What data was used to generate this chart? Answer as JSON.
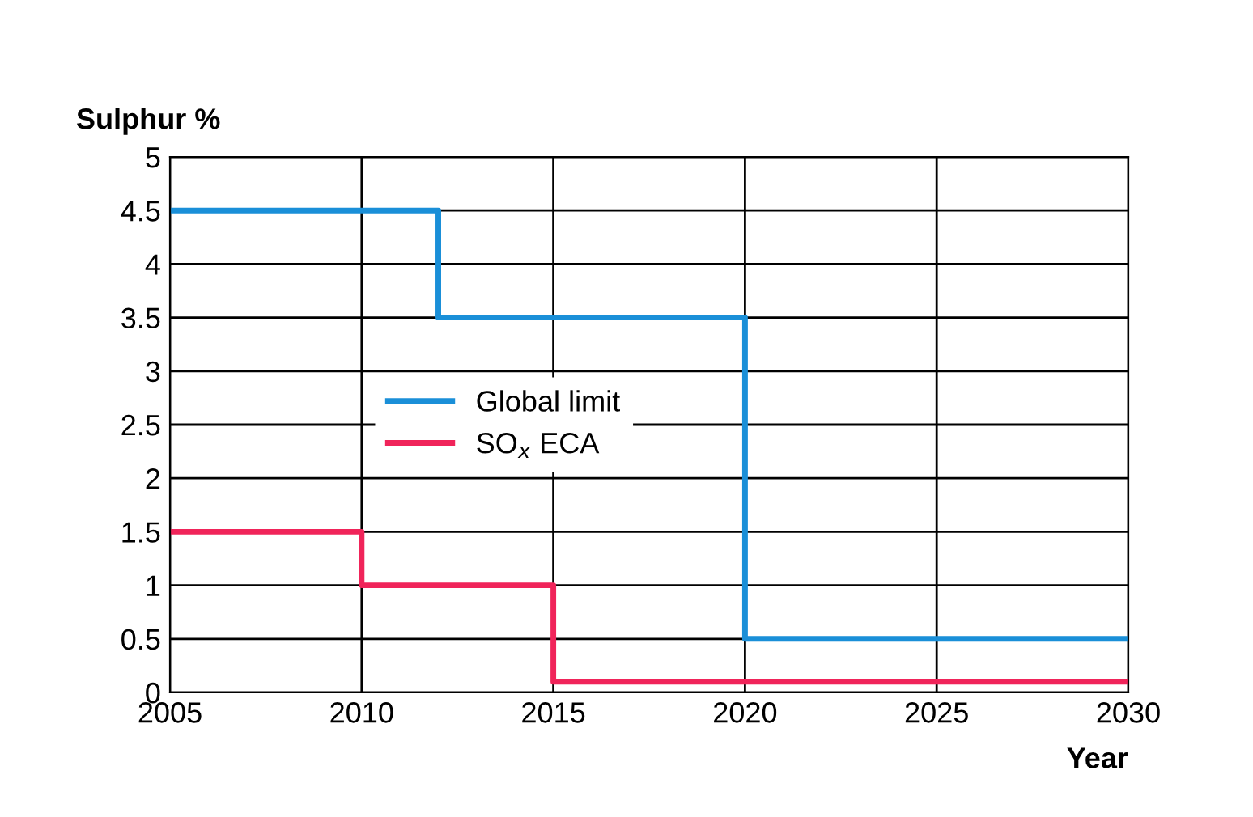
{
  "chart_data": {
    "type": "step",
    "ylabel": "Sulphur %",
    "xlabel": "Year",
    "series": [
      {
        "name": "Global limit",
        "color": "#1a8fd8",
        "x": [
          2005,
          2012,
          2020,
          2030
        ],
        "values": [
          4.5,
          3.5,
          0.5,
          0.5
        ]
      },
      {
        "name": "SO$_{x}$ ECA",
        "color": "#f0245a",
        "x": [
          2005,
          2010,
          2015,
          2030
        ],
        "values": [
          1.5,
          1.0,
          0.1,
          0.1
        ]
      }
    ],
    "xlim": [
      2005,
      2030
    ],
    "xticks": [
      2005,
      2010,
      2015,
      2020,
      2025,
      2030
    ],
    "ylim": [
      0,
      5
    ],
    "yticks": [
      0,
      0.5,
      1,
      1.5,
      2,
      2.5,
      3,
      3.5,
      4,
      4.5,
      5
    ],
    "grid": true,
    "legend": "center left",
    "line_style": "solid"
  }
}
